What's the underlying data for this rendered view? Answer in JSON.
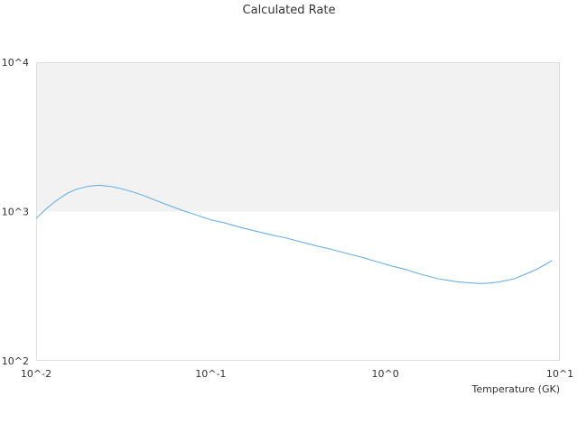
{
  "chart_data": {
    "type": "line",
    "title": "Calculated Rate",
    "xlabel": "Temperature (GK)",
    "ylabel": "",
    "x_scale": "log",
    "y_scale": "log",
    "xlim": [
      0.01,
      10
    ],
    "ylim": [
      100,
      10000
    ],
    "x_ticks": [
      "10^-2",
      "10^-1",
      "10^0",
      "10^1"
    ],
    "y_ticks": [
      "10^2",
      "10^3",
      "10^4"
    ],
    "shaded_band": {
      "y_from": 1000,
      "y_to": 10000,
      "color": "#f2f2f2"
    },
    "grid": false,
    "legend": "none",
    "line_color": "#5aa9e6",
    "series": [
      {
        "x": [
          0.01,
          0.0115,
          0.013,
          0.015,
          0.017,
          0.02,
          0.023,
          0.027,
          0.031,
          0.036,
          0.042,
          0.05,
          0.06,
          0.07,
          0.08,
          0.1,
          0.12,
          0.15,
          0.18,
          0.22,
          0.27,
          0.33,
          0.4,
          0.5,
          0.6,
          0.75,
          0.9,
          1.1,
          1.3,
          1.6,
          2,
          2.5,
          3,
          3.5,
          4,
          4.5,
          5.5,
          6.5,
          7.5,
          9
        ],
        "y": [
          900,
          1050,
          1180,
          1320,
          1410,
          1480,
          1500,
          1470,
          1420,
          1350,
          1270,
          1170,
          1080,
          1010,
          960,
          880,
          840,
          780,
          740,
          700,
          665,
          625,
          590,
          555,
          525,
          490,
          460,
          430,
          410,
          380,
          355,
          340,
          333,
          330,
          332,
          338,
          355,
          385,
          415,
          470
        ]
      }
    ]
  }
}
